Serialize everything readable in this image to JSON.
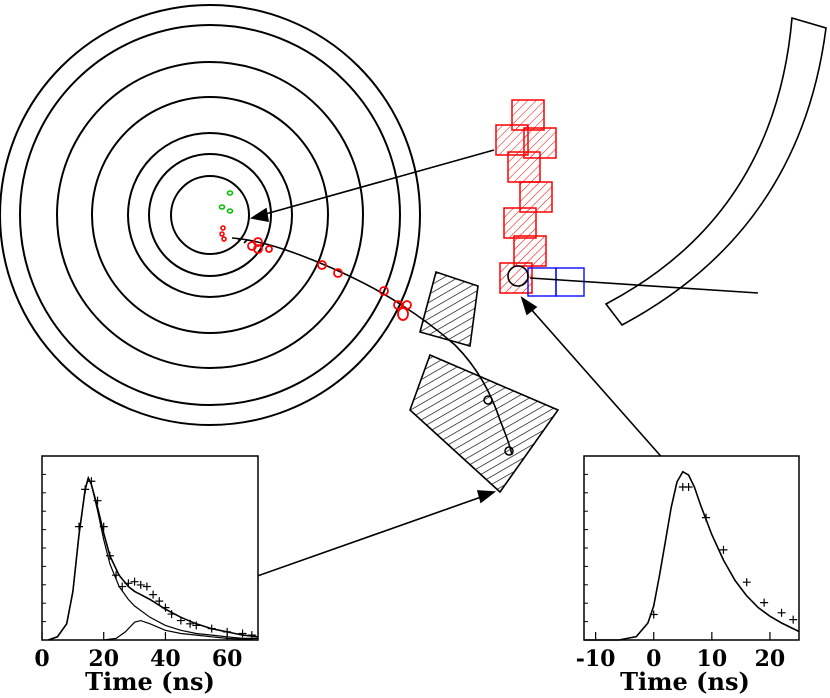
{
  "colors": {
    "ink": "#000000",
    "hits_red": "#ff0000",
    "hits_green": "#00c000",
    "blue_cells": "#1a1aff",
    "background": "#ffffff"
  },
  "chart_data": [
    {
      "type": "line",
      "title": "",
      "xlabel": "Time (ns)",
      "ylabel": "",
      "xlim": [
        0,
        70
      ],
      "x_ticks": [
        "0",
        "20",
        "40",
        "60"
      ],
      "series": [
        {
          "x": [
            2,
            5,
            8,
            10,
            12,
            14,
            15,
            16,
            18,
            20,
            22,
            25,
            28,
            30,
            32,
            35,
            40,
            45,
            50,
            55,
            60,
            65,
            70
          ],
          "y": [
            0.0,
            0.02,
            0.1,
            0.3,
            0.65,
            0.93,
            1.0,
            0.96,
            0.82,
            0.66,
            0.52,
            0.4,
            0.33,
            0.3,
            0.28,
            0.25,
            0.19,
            0.14,
            0.1,
            0.07,
            0.05,
            0.03,
            0.02
          ]
        },
        {
          "x": [
            2,
            5,
            8,
            10,
            12,
            14,
            15,
            16,
            18,
            20,
            22,
            25,
            28,
            30,
            35,
            40,
            45,
            50,
            55,
            60,
            65,
            70
          ],
          "y": [
            0.0,
            0.02,
            0.1,
            0.3,
            0.65,
            0.93,
            1.0,
            0.96,
            0.8,
            0.62,
            0.47,
            0.33,
            0.25,
            0.21,
            0.14,
            0.09,
            0.06,
            0.04,
            0.03,
            0.02,
            0.01,
            0.01
          ]
        },
        {
          "x": [
            20,
            24,
            27,
            30,
            32,
            35,
            40,
            45,
            50,
            55,
            60,
            70
          ],
          "y": [
            0.0,
            0.01,
            0.05,
            0.11,
            0.12,
            0.1,
            0.06,
            0.04,
            0.03,
            0.02,
            0.01,
            0.0
          ]
        }
      ],
      "markers": {
        "x": [
          12,
          14,
          16,
          18,
          20,
          22,
          24,
          26,
          28,
          30,
          32,
          34,
          36,
          38,
          40,
          42,
          45,
          48,
          50,
          55,
          60,
          65,
          68
        ],
        "y": [
          0.7,
          0.93,
          0.98,
          0.86,
          0.7,
          0.52,
          0.4,
          0.33,
          0.35,
          0.36,
          0.34,
          0.33,
          0.28,
          0.24,
          0.2,
          0.16,
          0.12,
          0.1,
          0.09,
          0.07,
          0.05,
          0.04,
          0.03
        ]
      }
    },
    {
      "type": "line",
      "title": "",
      "xlabel": "Time (ns)",
      "ylabel": "",
      "xlim": [
        -12,
        25
      ],
      "x_ticks": [
        "-10",
        "0",
        "10",
        "20"
      ],
      "series": [
        {
          "x": [
            -12,
            -6,
            -3,
            -1,
            0,
            1,
            2,
            3,
            4,
            5,
            6,
            7,
            8,
            10,
            12,
            14,
            16,
            18,
            20,
            22,
            25
          ],
          "y": [
            0.0,
            0.0,
            0.02,
            0.1,
            0.2,
            0.38,
            0.58,
            0.78,
            0.93,
            0.99,
            0.97,
            0.9,
            0.8,
            0.62,
            0.47,
            0.35,
            0.26,
            0.19,
            0.14,
            0.1,
            0.05
          ]
        }
      ],
      "markers": {
        "x": [
          0,
          5,
          6,
          9,
          12,
          16,
          19,
          22,
          24
        ],
        "y": [
          0.15,
          0.9,
          0.9,
          0.72,
          0.53,
          0.34,
          0.22,
          0.16,
          0.12
        ]
      }
    }
  ]
}
